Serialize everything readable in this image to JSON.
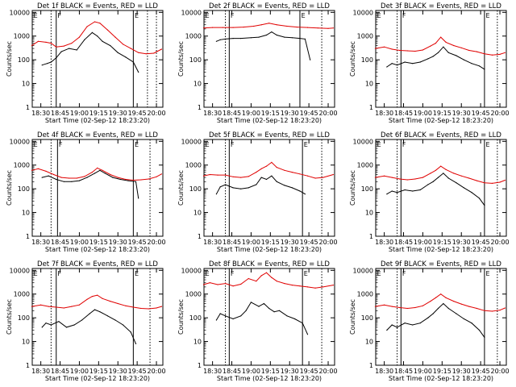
{
  "colors": {
    "events": "#000000",
    "lld": "#e00000",
    "axis": "#000000",
    "bg": "#ffffff"
  },
  "shared": {
    "ylabel": "Counts/sec",
    "xlabel": "Start Time (02-Sep-12 18:23:20)",
    "x_tick_labels": [
      "18:30",
      "18:45",
      "19:00",
      "19:15",
      "19:30",
      "19:45",
      "20:00"
    ],
    "y_tick_labels": [
      "1",
      "10",
      "100",
      "1000",
      "10000"
    ],
    "marker_labels": [
      "E",
      "F",
      "E"
    ]
  },
  "chart_data": [
    {
      "type": "line",
      "title": "Det 1f BLACK = Events, RED = LLD",
      "xlim": [
        "18:23:20",
        "20:05"
      ],
      "ylim": [
        1,
        12000
      ],
      "yscale": "log",
      "markers": {
        "solid": [
          "18:42",
          "19:42"
        ],
        "dotted": [
          "18:38",
          "19:53",
          "20:00"
        ]
      },
      "series": [
        {
          "name": "Events",
          "color": "#000000",
          "x": [
            "18:31",
            "18:35",
            "18:38",
            "18:42",
            "18:46",
            "18:52",
            "18:58",
            "19:04",
            "19:10",
            "19:14",
            "19:18",
            "19:24",
            "19:30",
            "19:36",
            "19:42",
            "19:46"
          ],
          "y": [
            60,
            70,
            80,
            120,
            220,
            300,
            260,
            700,
            1400,
            1000,
            600,
            400,
            200,
            130,
            80,
            30
          ]
        },
        {
          "name": "LLD",
          "color": "#e00000",
          "x": [
            "18:23",
            "18:28",
            "18:34",
            "18:38",
            "18:42",
            "18:48",
            "18:54",
            "19:00",
            "19:06",
            "19:12",
            "19:16",
            "19:22",
            "19:28",
            "19:34",
            "19:40",
            "19:46",
            "19:52",
            "19:58",
            "20:04"
          ],
          "y": [
            400,
            600,
            550,
            500,
            350,
            380,
            500,
            900,
            2500,
            4000,
            3500,
            1800,
            900,
            450,
            300,
            200,
            180,
            190,
            280
          ]
        }
      ]
    },
    {
      "type": "line",
      "title": "Det 2f BLACK = Events, RED = LLD",
      "xlim": [
        "18:23:20",
        "20:05"
      ],
      "ylim": [
        1,
        12000
      ],
      "yscale": "log",
      "markers": {
        "solid": [
          "18:43",
          "19:38"
        ],
        "dotted": [
          "18:40",
          "19:55"
        ]
      },
      "series": [
        {
          "name": "Events",
          "color": "#000000",
          "x": [
            "18:33",
            "18:36",
            "18:40",
            "18:46",
            "18:52",
            "19:00",
            "19:06",
            "19:12",
            "19:16",
            "19:20",
            "19:26",
            "19:32",
            "19:38",
            "19:42",
            "19:46"
          ],
          "y": [
            600,
            700,
            750,
            800,
            800,
            850,
            900,
            1100,
            1500,
            1100,
            900,
            850,
            800,
            750,
            100
          ]
        },
        {
          "name": "LLD",
          "color": "#e00000",
          "x": [
            "18:23",
            "18:30",
            "18:38",
            "18:46",
            "18:54",
            "19:02",
            "19:08",
            "19:14",
            "19:20",
            "19:28",
            "19:36",
            "19:44",
            "19:52",
            "20:00",
            "20:04"
          ],
          "y": [
            2200,
            2300,
            2300,
            2300,
            2400,
            2600,
            3000,
            3500,
            3000,
            2600,
            2400,
            2300,
            2200,
            2100,
            2200
          ]
        }
      ]
    },
    {
      "type": "line",
      "title": "Det 3f BLACK = Events, RED = LLD",
      "xlim": [
        "18:23:20",
        "20:05"
      ],
      "ylim": [
        1,
        12000
      ],
      "yscale": "log",
      "markers": {
        "solid": [
          "18:43",
          "19:48"
        ],
        "dotted": [
          "18:40",
          "19:58"
        ]
      },
      "series": [
        {
          "name": "Events",
          "color": "#000000",
          "x": [
            "18:32",
            "18:36",
            "18:40",
            "18:46",
            "18:52",
            "18:58",
            "19:04",
            "19:08",
            "19:12",
            "19:16",
            "19:20",
            "19:26",
            "19:32",
            "19:38",
            "19:44",
            "19:48"
          ],
          "y": [
            50,
            70,
            60,
            80,
            70,
            80,
            110,
            140,
            200,
            350,
            200,
            150,
            100,
            70,
            55,
            40
          ]
        },
        {
          "name": "LLD",
          "color": "#e00000",
          "x": [
            "18:23",
            "18:30",
            "18:36",
            "18:42",
            "18:48",
            "18:54",
            "19:00",
            "19:06",
            "19:10",
            "19:14",
            "19:18",
            "19:24",
            "19:30",
            "19:36",
            "19:42",
            "19:48",
            "19:54",
            "20:00",
            "20:04"
          ],
          "y": [
            300,
            350,
            280,
            250,
            240,
            230,
            260,
            380,
            500,
            900,
            550,
            400,
            320,
            250,
            220,
            180,
            160,
            170,
            200
          ]
        }
      ]
    },
    {
      "type": "line",
      "title": "Det 4f BLACK = Events, RED = LLD",
      "xlim": [
        "18:23:20",
        "20:05"
      ],
      "ylim": [
        1,
        12000
      ],
      "yscale": "log",
      "markers": {
        "solid": [
          "18:43",
          "19:42"
        ],
        "dotted": [
          "18:38",
          "19:55"
        ]
      },
      "series": [
        {
          "name": "Events",
          "color": "#000000",
          "x": [
            "18:31",
            "18:36",
            "18:42",
            "18:48",
            "18:54",
            "19:00",
            "19:06",
            "19:12",
            "19:16",
            "19:20",
            "19:26",
            "19:32",
            "19:38",
            "19:44",
            "19:46"
          ],
          "y": [
            300,
            350,
            250,
            200,
            200,
            220,
            300,
            450,
            600,
            450,
            300,
            250,
            220,
            200,
            40
          ]
        },
        {
          "name": "LLD",
          "color": "#e00000",
          "x": [
            "18:23",
            "18:28",
            "18:34",
            "18:40",
            "18:46",
            "18:52",
            "18:58",
            "19:04",
            "19:10",
            "19:14",
            "19:18",
            "19:24",
            "19:30",
            "19:36",
            "19:42",
            "19:48",
            "19:54",
            "20:00",
            "20:04"
          ],
          "y": [
            600,
            700,
            550,
            400,
            300,
            280,
            280,
            330,
            500,
            750,
            600,
            400,
            300,
            250,
            230,
            240,
            260,
            320,
            420
          ]
        }
      ]
    },
    {
      "type": "line",
      "title": "Det 5f BLACK = Events, RED = LLD",
      "xlim": [
        "18:23:20",
        "20:05"
      ],
      "ylim": [
        1,
        12000
      ],
      "yscale": "log",
      "markers": {
        "solid": [
          "18:43",
          "19:40"
        ],
        "dotted": [
          "18:40",
          "19:55"
        ]
      },
      "series": [
        {
          "name": "Events",
          "color": "#000000",
          "x": [
            "18:33",
            "18:36",
            "18:40",
            "18:46",
            "18:52",
            "18:58",
            "19:04",
            "19:08",
            "19:12",
            "19:16",
            "19:20",
            "19:26",
            "19:32",
            "19:38",
            "19:42"
          ],
          "y": [
            60,
            120,
            150,
            110,
            100,
            110,
            150,
            300,
            250,
            350,
            200,
            140,
            110,
            80,
            60
          ]
        },
        {
          "name": "LLD",
          "color": "#e00000",
          "x": [
            "18:23",
            "18:28",
            "18:34",
            "18:40",
            "18:46",
            "18:52",
            "18:58",
            "19:04",
            "19:08",
            "19:12",
            "19:16",
            "19:20",
            "19:26",
            "19:32",
            "19:38",
            "19:44",
            "19:50",
            "19:56",
            "20:04"
          ],
          "y": [
            350,
            400,
            380,
            380,
            320,
            300,
            330,
            500,
            700,
            900,
            1300,
            800,
            600,
            500,
            420,
            350,
            280,
            300,
            400
          ]
        }
      ]
    },
    {
      "type": "line",
      "title": "Det 6f BLACK = Events, RED = LLD",
      "xlim": [
        "18:23:20",
        "20:05"
      ],
      "ylim": [
        1,
        12000
      ],
      "yscale": "log",
      "markers": {
        "solid": [
          "18:43",
          "19:48"
        ],
        "dotted": [
          "18:40",
          "19:58"
        ]
      },
      "series": [
        {
          "name": "Events",
          "color": "#000000",
          "x": [
            "18:32",
            "18:36",
            "18:40",
            "18:46",
            "18:52",
            "18:58",
            "19:04",
            "19:08",
            "19:12",
            "19:16",
            "19:20",
            "19:26",
            "19:32",
            "19:38",
            "19:44",
            "19:48"
          ],
          "y": [
            60,
            80,
            70,
            90,
            80,
            90,
            150,
            200,
            300,
            450,
            280,
            180,
            110,
            70,
            40,
            20
          ]
        },
        {
          "name": "LLD",
          "color": "#e00000",
          "x": [
            "18:23",
            "18:30",
            "18:36",
            "18:42",
            "18:48",
            "18:54",
            "19:00",
            "19:06",
            "19:10",
            "19:14",
            "19:18",
            "19:24",
            "19:30",
            "19:36",
            "19:42",
            "19:48",
            "19:54",
            "20:00",
            "20:04"
          ],
          "y": [
            300,
            350,
            300,
            260,
            240,
            260,
            300,
            450,
            600,
            900,
            650,
            450,
            350,
            280,
            220,
            180,
            170,
            190,
            230
          ]
        }
      ]
    },
    {
      "type": "line",
      "title": "Det 7f BLACK = Events, RED = LLD",
      "xlim": [
        "18:23:20",
        "20:05"
      ],
      "ylim": [
        1,
        12000
      ],
      "yscale": "log",
      "markers": {
        "solid": [
          "18:42",
          "19:42"
        ],
        "dotted": [
          "18:38",
          "19:55"
        ]
      },
      "series": [
        {
          "name": "Events",
          "color": "#000000",
          "x": [
            "18:31",
            "18:34",
            "18:38",
            "18:44",
            "18:50",
            "18:56",
            "19:02",
            "19:08",
            "19:12",
            "19:16",
            "19:22",
            "19:28",
            "19:34",
            "19:40",
            "19:44"
          ],
          "y": [
            40,
            60,
            50,
            70,
            40,
            50,
            80,
            150,
            220,
            180,
            120,
            80,
            50,
            25,
            8
          ]
        },
        {
          "name": "LLD",
          "color": "#e00000",
          "x": [
            "18:23",
            "18:30",
            "18:36",
            "18:42",
            "18:48",
            "18:54",
            "19:00",
            "19:06",
            "19:10",
            "19:14",
            "19:18",
            "19:24",
            "19:30",
            "19:36",
            "19:42",
            "19:48",
            "19:54",
            "20:00",
            "20:04"
          ],
          "y": [
            300,
            350,
            300,
            280,
            260,
            300,
            350,
            600,
            800,
            900,
            650,
            500,
            400,
            320,
            280,
            250,
            240,
            260,
            300
          ]
        }
      ]
    },
    {
      "type": "line",
      "title": "Det 8f BLACK = Events, RED = LLD",
      "xlim": [
        "18:23:20",
        "20:05"
      ],
      "ylim": [
        1,
        12000
      ],
      "yscale": "log",
      "markers": {
        "solid": [
          "18:43",
          "19:40"
        ],
        "dotted": [
          "18:40",
          "19:55"
        ]
      },
      "series": [
        {
          "name": "Events",
          "color": "#000000",
          "x": [
            "18:33",
            "18:36",
            "18:40",
            "18:46",
            "18:52",
            "18:56",
            "19:00",
            "19:06",
            "19:10",
            "19:14",
            "19:18",
            "19:22",
            "19:28",
            "19:34",
            "19:40",
            "19:44"
          ],
          "y": [
            80,
            150,
            120,
            90,
            120,
            200,
            450,
            300,
            400,
            250,
            180,
            200,
            120,
            90,
            60,
            20
          ]
        },
        {
          "name": "LLD",
          "color": "#e00000",
          "x": [
            "18:23",
            "18:28",
            "18:34",
            "18:40",
            "18:46",
            "18:52",
            "18:58",
            "19:04",
            "19:08",
            "19:12",
            "19:16",
            "19:20",
            "19:26",
            "19:32",
            "19:38",
            "19:44",
            "19:50",
            "19:56",
            "20:04"
          ],
          "y": [
            2500,
            3000,
            2500,
            2800,
            2200,
            2600,
            4500,
            3500,
            6000,
            8000,
            5000,
            3500,
            2800,
            2400,
            2200,
            2000,
            1800,
            2000,
            2400
          ]
        }
      ]
    },
    {
      "type": "line",
      "title": "Det 9f BLACK = Events, RED = LLD",
      "xlim": [
        "18:23:20",
        "20:05"
      ],
      "ylim": [
        1,
        12000
      ],
      "yscale": "log",
      "markers": {
        "solid": [
          "18:43",
          "19:48"
        ],
        "dotted": [
          "18:40",
          "19:58"
        ]
      },
      "series": [
        {
          "name": "Events",
          "color": "#000000",
          "x": [
            "18:32",
            "18:36",
            "18:40",
            "18:46",
            "18:52",
            "18:58",
            "19:04",
            "19:08",
            "19:12",
            "19:16",
            "19:20",
            "19:26",
            "19:32",
            "19:38",
            "19:44",
            "19:48"
          ],
          "y": [
            30,
            50,
            40,
            60,
            50,
            60,
            100,
            150,
            250,
            400,
            250,
            150,
            90,
            60,
            30,
            15
          ]
        },
        {
          "name": "LLD",
          "color": "#e00000",
          "x": [
            "18:23",
            "18:30",
            "18:36",
            "18:42",
            "18:48",
            "18:54",
            "19:00",
            "19:06",
            "19:10",
            "19:14",
            "19:18",
            "19:24",
            "19:30",
            "19:36",
            "19:42",
            "19:48",
            "19:54",
            "20:00",
            "20:04"
          ],
          "y": [
            300,
            350,
            300,
            270,
            250,
            270,
            320,
            500,
            700,
            1000,
            700,
            500,
            380,
            300,
            250,
            200,
            190,
            210,
            260
          ]
        }
      ]
    }
  ]
}
